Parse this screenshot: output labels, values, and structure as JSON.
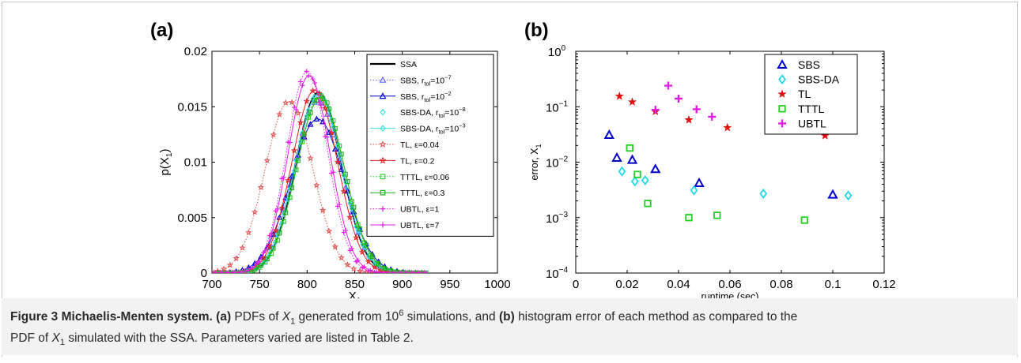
{
  "figure": {
    "caption_label": "Figure 3",
    "caption_title": "Michaelis-Menten system.",
    "caption_a_label": "(a)",
    "caption_text1": "PDFs of",
    "caption_var": "X",
    "caption_sub": "1",
    "caption_text2": "generated from",
    "caption_sims_base": "10",
    "caption_sims_exp": "6",
    "caption_text3": "simulations, and",
    "caption_b_label": "(b)",
    "caption_text4": "histogram error of each method as compared to the",
    "caption_text5": "PDF of",
    "caption_text6": "simulated with the SSA. Parameters varied are listed in Table 2."
  },
  "chart_data": [
    {
      "type": "line",
      "panel_label": "(a)",
      "xlabel": "X",
      "xlabel_sub": "1",
      "ylabel": "p(X",
      "ylabel_sub": "1",
      "ylabel_end": ")",
      "xlim": [
        700,
        1000
      ],
      "ylim": [
        0,
        0.02
      ],
      "xticks": [
        "700",
        "750",
        "800",
        "850",
        "900",
        "950",
        "1000"
      ],
      "yticks": [
        "0",
        "0.005",
        "0.01",
        "0.015",
        "0.02"
      ],
      "legend_position": "top-right",
      "series": [
        {
          "name": "SSA",
          "mu": 812,
          "peak": 0.0163,
          "sigma": 24,
          "color": "#000000",
          "marker": "none",
          "line": "solid",
          "width": 2.2
        },
        {
          "name": "SBS, r_tol=10^-7",
          "label": "SBS, r",
          "sub": "tol",
          "mid": "=10",
          "sup": "−7",
          "mu": 811,
          "peak": 0.0155,
          "sigma": 25,
          "color": "#6a6aff",
          "marker": "triangle",
          "line": "dotted",
          "width": 1
        },
        {
          "name": "SBS, r_tol=10^-2",
          "label": "SBS, r",
          "sub": "tol",
          "mid": "=10",
          "sup": "−2",
          "mu": 811,
          "peak": 0.0139,
          "sigma": 28,
          "color": "#0000cc",
          "marker": "triangle",
          "line": "solid",
          "width": 1
        },
        {
          "name": "SBS-DA, r_tol=10^-8",
          "label": "SBS-DA, r",
          "sub": "tol",
          "mid": "=10",
          "sup": "−8",
          "mu": 812,
          "peak": 0.0162,
          "sigma": 24,
          "color": "#40e0e8",
          "marker": "diamond",
          "line": "none",
          "width": 1
        },
        {
          "name": "SBS-DA, r_tol=10^-3",
          "label": "SBS-DA, r",
          "sub": "tol",
          "mid": "=10",
          "sup": "−3",
          "mu": 812,
          "peak": 0.0161,
          "sigma": 24.5,
          "color": "#40e0e8",
          "marker": "diamond",
          "line": "solid",
          "width": 1
        },
        {
          "name": "TL, ε=0.04",
          "label": "TL, ε=0.04",
          "mu": 781,
          "peak": 0.0155,
          "sigma": 25,
          "color": "#e05050",
          "marker": "star",
          "line": "dotted",
          "width": 1
        },
        {
          "name": "TL, ε=0.2",
          "label": "TL, ε=0.2",
          "mu": 808,
          "peak": 0.0165,
          "sigma": 24,
          "color": "#e02020",
          "marker": "star",
          "line": "solid",
          "width": 1
        },
        {
          "name": "TTTL, ε=0.06",
          "label": "TTTL, ε=0.06",
          "mu": 814,
          "peak": 0.016,
          "sigma": 24.5,
          "color": "#30d030",
          "marker": "square",
          "line": "dotted",
          "width": 1
        },
        {
          "name": "TTTL, ε=0.3",
          "label": "TTTL, ε=0.3",
          "mu": 814,
          "peak": 0.0158,
          "sigma": 25,
          "color": "#20b020",
          "marker": "square",
          "line": "solid",
          "width": 1
        },
        {
          "name": "UBTL, ε=1",
          "label": "UBTL, ε=1",
          "mu": 800,
          "peak": 0.0182,
          "sigma": 21.5,
          "color": "#e020e0",
          "marker": "plus",
          "line": "dotted",
          "width": 1
        },
        {
          "name": "UBTL, ε=7",
          "label": "UBTL, ε=7",
          "mu": 802,
          "peak": 0.0178,
          "sigma": 22,
          "color": "#e020e0",
          "marker": "plus",
          "line": "solid",
          "width": 1
        }
      ]
    },
    {
      "type": "scatter",
      "panel_label": "(b)",
      "xlabel": "runtime (sec)",
      "ylabel": "error, X",
      "ylabel_sub": "1",
      "xlim": [
        0,
        0.12
      ],
      "ylim_log10": [
        -4,
        0
      ],
      "yscale": "log",
      "xticks": [
        "0",
        "0.02",
        "0.04",
        "0.06",
        "0.08",
        "0.1",
        "0.12"
      ],
      "yticks_exp": [
        "0",
        "−1",
        "−2",
        "−3",
        "−4"
      ],
      "ytick_base": "10",
      "legend_position": "top-right",
      "series": [
        {
          "name": "SBS",
          "color": "#0000cc",
          "marker": "triangle",
          "points": [
            [
              0.013,
              0.031
            ],
            [
              0.016,
              0.012
            ],
            [
              0.022,
              0.011
            ],
            [
              0.031,
              0.0075
            ],
            [
              0.048,
              0.0042
            ],
            [
              0.1,
              0.0026
            ]
          ]
        },
        {
          "name": "SBS-DA",
          "color": "#20d8e8",
          "marker": "diamond",
          "points": [
            [
              0.018,
              0.0068
            ],
            [
              0.023,
              0.0045
            ],
            [
              0.027,
              0.0047
            ],
            [
              0.046,
              0.0031
            ],
            [
              0.073,
              0.0027
            ],
            [
              0.106,
              0.0025
            ]
          ]
        },
        {
          "name": "TL",
          "color": "#e01010",
          "marker": "star",
          "points": [
            [
              0.017,
              0.155
            ],
            [
              0.022,
              0.122
            ],
            [
              0.031,
              0.082
            ],
            [
              0.044,
              0.058
            ],
            [
              0.059,
              0.042
            ],
            [
              0.097,
              0.03
            ]
          ]
        },
        {
          "name": "TTTL",
          "color": "#20d020",
          "marker": "square",
          "points": [
            [
              0.021,
              0.018
            ],
            [
              0.024,
              0.006
            ],
            [
              0.028,
              0.0018
            ],
            [
              0.044,
              0.001
            ],
            [
              0.055,
              0.0011
            ],
            [
              0.089,
              0.0009
            ]
          ]
        },
        {
          "name": "UBTL",
          "color": "#e020e0",
          "marker": "plus",
          "points": [
            [
              0.036,
              0.24
            ],
            [
              0.04,
              0.14
            ],
            [
              0.031,
              0.088
            ],
            [
              0.047,
              0.09
            ],
            [
              0.053,
              0.066
            ]
          ]
        }
      ]
    }
  ]
}
